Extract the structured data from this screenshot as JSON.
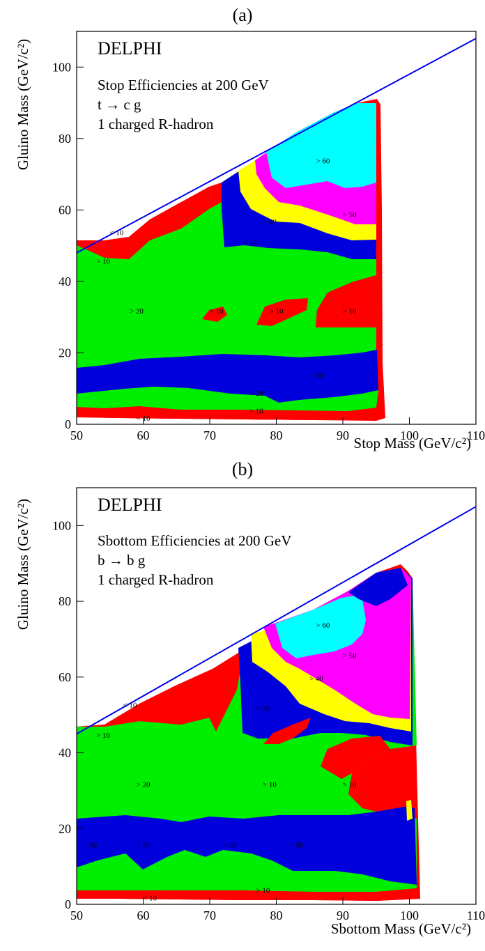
{
  "chart_data": [
    {
      "type": "contour",
      "panel_label": "(a)",
      "experiment": "DELPHI",
      "annotation": [
        "Stop Efficiencies at 200 GeV",
        "t → c g",
        "1 charged R-hadron"
      ],
      "xlabel": "Stop Mass (GeV/c²)",
      "ylabel": "Gluino Mass (GeV/c²)",
      "xlim": [
        50,
        110
      ],
      "ylim": [
        0,
        110
      ],
      "xticks": [
        "50",
        "60",
        "70",
        "80",
        "90",
        "100",
        "110"
      ],
      "yticks": [
        "0",
        "20",
        "40",
        "60",
        "80",
        "100"
      ],
      "kinematic_line": {
        "x": [
          50,
          110
        ],
        "y": [
          48,
          108
        ]
      },
      "region_labels": [
        {
          "text": "< 10",
          "x": 56,
          "y": 53
        },
        {
          "text": "> 10",
          "x": 54,
          "y": 45
        },
        {
          "text": "> 20",
          "x": 59,
          "y": 31
        },
        {
          "text": "> 10",
          "x": 71,
          "y": 31
        },
        {
          "text": "> 10",
          "x": 80,
          "y": 31
        },
        {
          "text": "> 10",
          "x": 91,
          "y": 31
        },
        {
          "text": "> 30",
          "x": 76,
          "y": 50
        },
        {
          "text": "> 40",
          "x": 79,
          "y": 56
        },
        {
          "text": "> 50",
          "x": 91,
          "y": 58
        },
        {
          "text": "> 60",
          "x": 87,
          "y": 73
        },
        {
          "text": "> 30",
          "x": 86,
          "y": 13
        },
        {
          "text": "> 20",
          "x": 77,
          "y": 8
        },
        {
          "text": "> 10",
          "x": 77,
          "y": 3
        },
        {
          "text": "< 10",
          "x": 60,
          "y": 1
        }
      ]
    },
    {
      "type": "contour",
      "panel_label": "(b)",
      "experiment": "DELPHI",
      "annotation": [
        "Sbottom Efficiencies at 200 GeV",
        "b → b g",
        "1 charged R-hadron"
      ],
      "xlabel": "Sbottom Mass (GeV/c²)",
      "ylabel": "Gluino Mass (GeV/c²)",
      "xlim": [
        50,
        110
      ],
      "ylim": [
        0,
        110
      ],
      "xticks": [
        "50",
        "60",
        "70",
        "80",
        "90",
        "100",
        "110"
      ],
      "yticks": [
        "0",
        "20",
        "40",
        "60",
        "80",
        "100"
      ],
      "kinematic_line": {
        "x": [
          50,
          110
        ],
        "y": [
          45,
          105
        ]
      },
      "region_labels": [
        {
          "text": "< 10",
          "x": 58,
          "y": 52
        },
        {
          "text": "> 10",
          "x": 54,
          "y": 44
        },
        {
          "text": "> 20",
          "x": 60,
          "y": 31
        },
        {
          "text": "> 10",
          "x": 79,
          "y": 31
        },
        {
          "text": "> 10",
          "x": 91,
          "y": 31
        },
        {
          "text": "> 30",
          "x": 78,
          "y": 51
        },
        {
          "text": "> 40",
          "x": 86,
          "y": 59
        },
        {
          "text": "> 50",
          "x": 91,
          "y": 65
        },
        {
          "text": "> 60",
          "x": 87,
          "y": 73
        },
        {
          "text": "> 30",
          "x": 52,
          "y": 15
        },
        {
          "text": "> 30",
          "x": 60,
          "y": 15
        },
        {
          "text": "> 30",
          "x": 73,
          "y": 15
        },
        {
          "text": "> 30",
          "x": 83,
          "y": 15
        },
        {
          "text": "> 10",
          "x": 78,
          "y": 3
        },
        {
          "text": "< 10",
          "x": 61,
          "y": 1
        }
      ]
    }
  ],
  "colors": {
    "lt10": "#ff0000",
    "gt10": "#ff0000",
    "gt20": "#00ee00",
    "gt30": "#0000dd",
    "gt40": "#ffff00",
    "gt50": "#ff00ff",
    "gt60": "#00ffff",
    "line": "#0000ee"
  }
}
